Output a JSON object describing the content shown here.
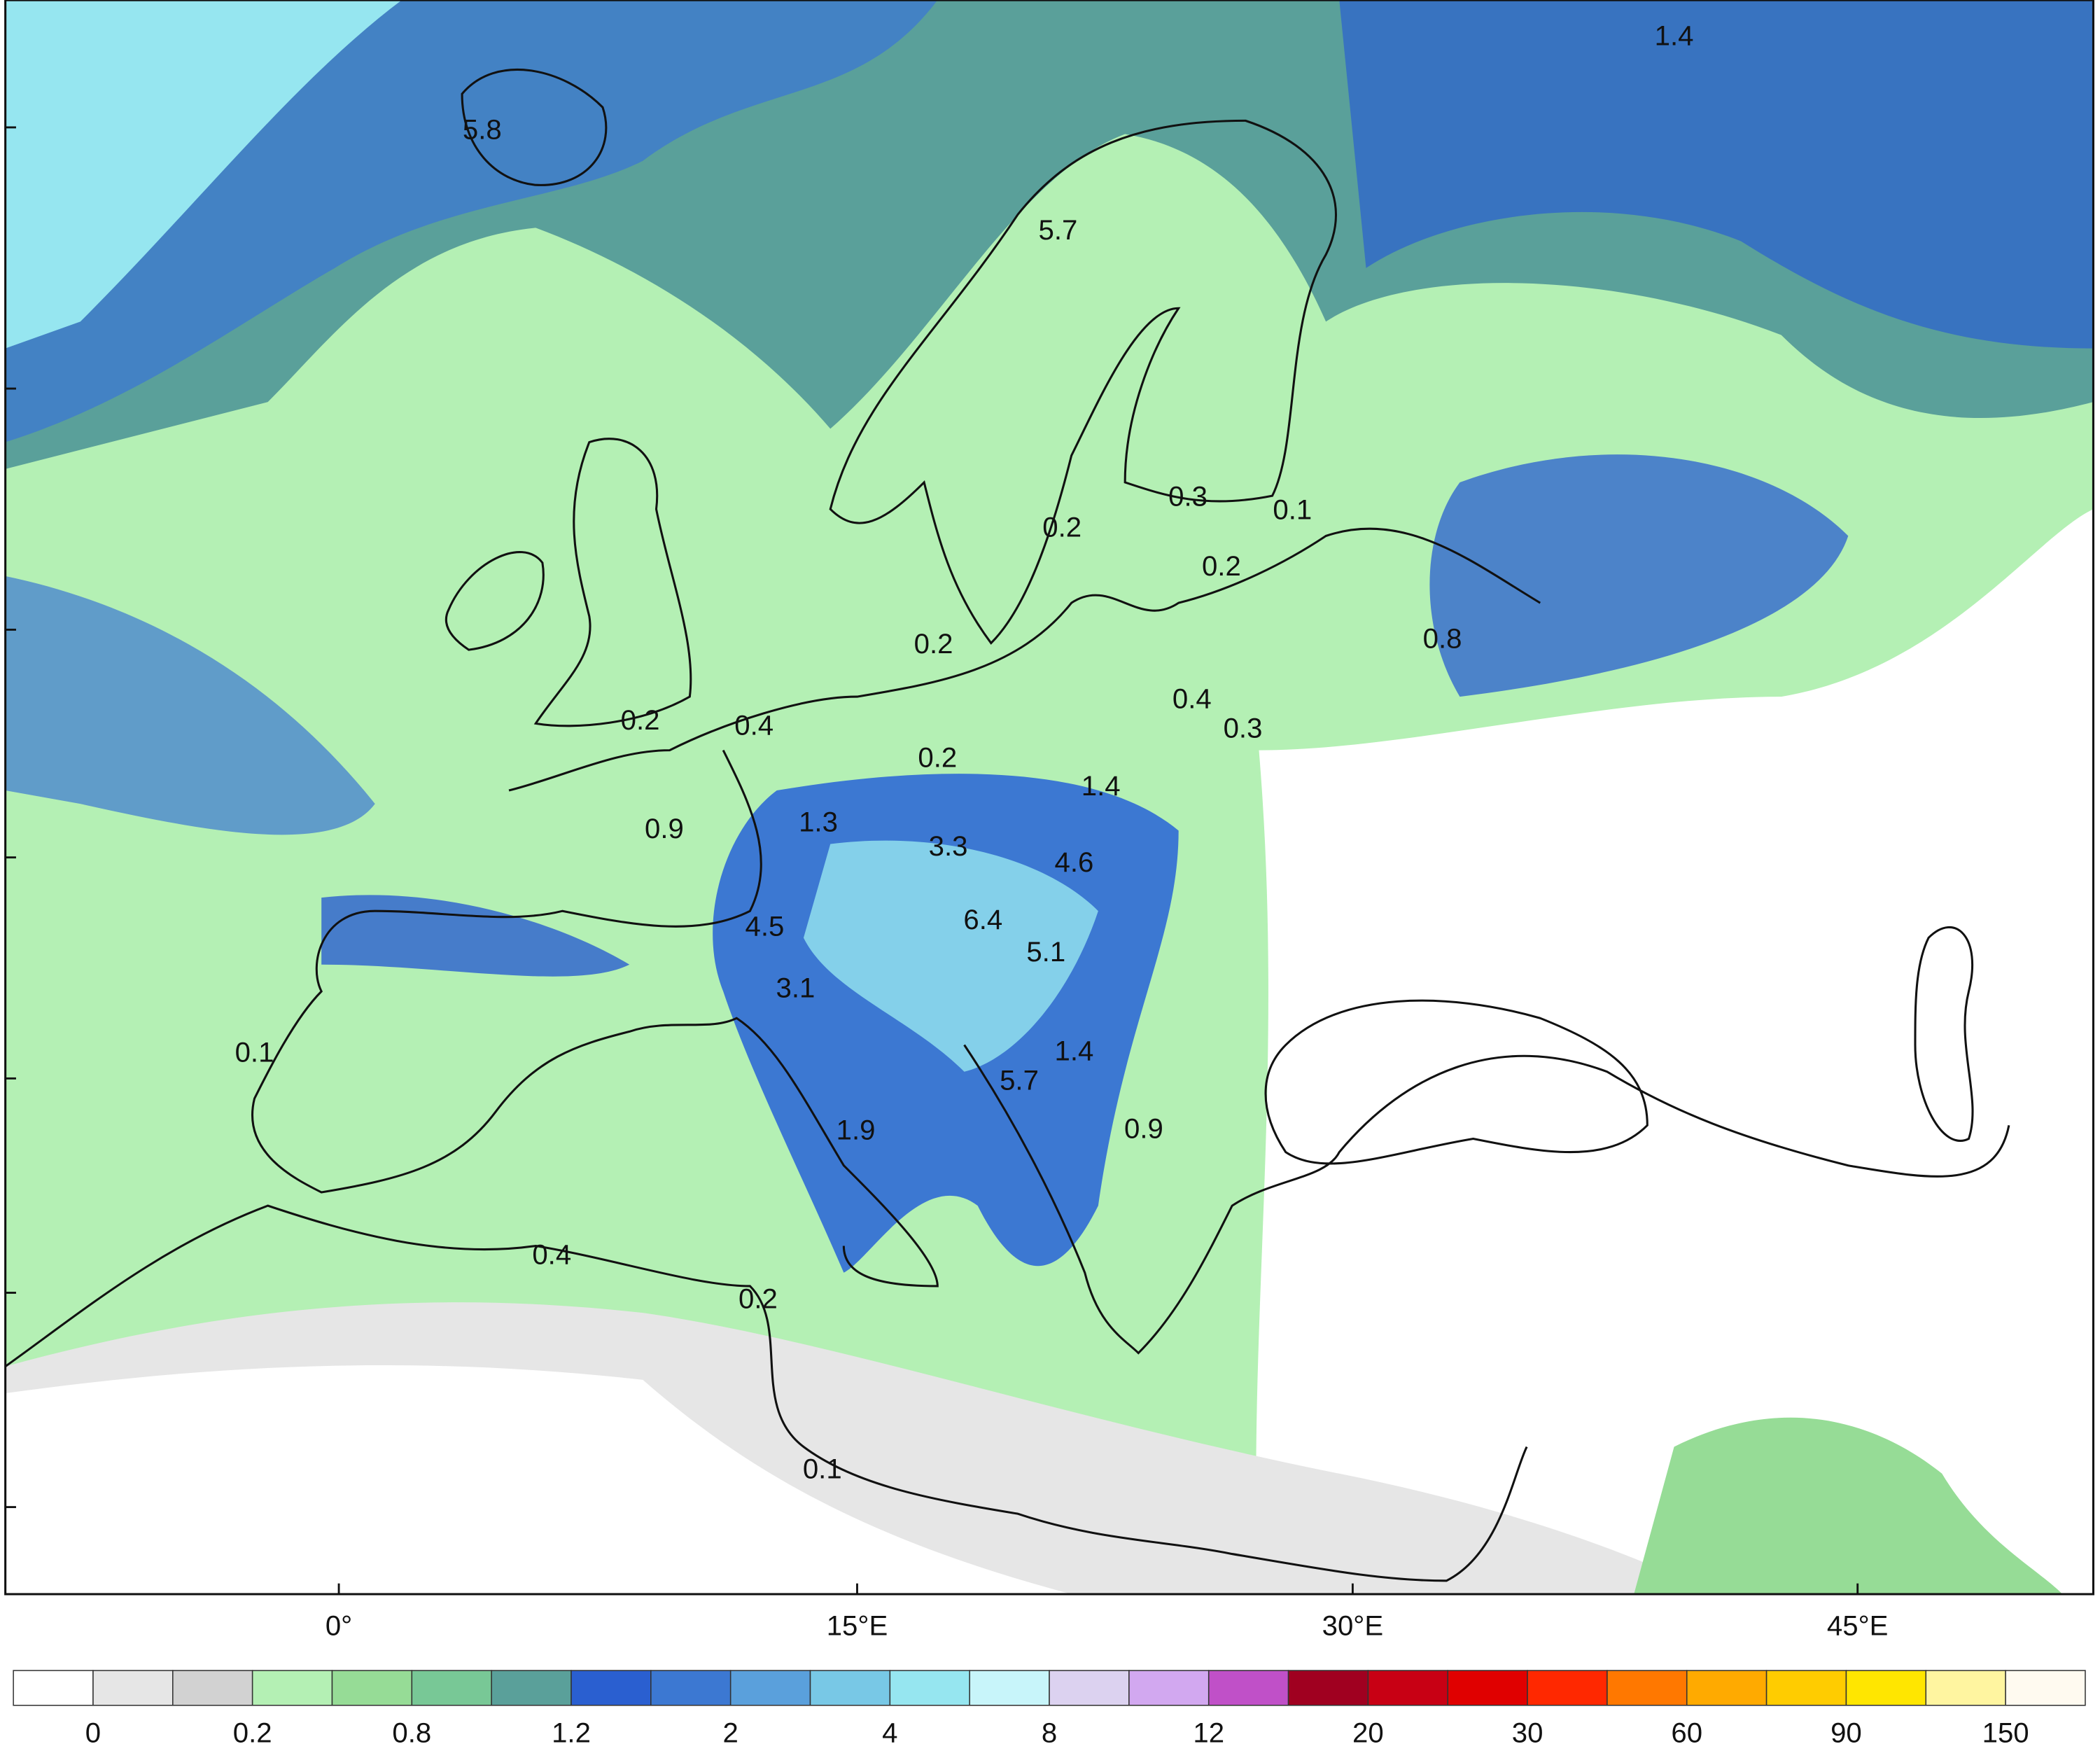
{
  "map": {
    "x_axis_labels": [
      "0°",
      "15°E",
      "30°E",
      "45°E"
    ],
    "value_labels": [
      "1.4",
      "5.8",
      "5.7",
      "0.2",
      "0.3",
      "0.1",
      "0.2",
      "0.8",
      "0.2",
      "0.4",
      "0.3",
      "0.2",
      "0.4",
      "0.2",
      "1.4",
      "0.9",
      "1.3",
      "3.3",
      "4.6",
      "6.4",
      "4.5",
      "5.1",
      "3.1",
      "0.1",
      "1.4",
      "5.7",
      "1.9",
      "0.9",
      "0.4",
      "0.2",
      "0.1"
    ],
    "colorbar": {
      "colors": [
        "#ffffff",
        "#e6e6e6",
        "#d2d2d2",
        "#b4f0b4",
        "#96dc96",
        "#78c896",
        "#5aa09a",
        "#2a5fd0",
        "#3c78d2",
        "#5aa0dc",
        "#78c8e6",
        "#96e6f0",
        "#c8f5fa",
        "#dcd2f0",
        "#d2a8f0",
        "#c050c8",
        "#a00020",
        "#c80014",
        "#e00000",
        "#ff2800",
        "#ff7800",
        "#ffaa00",
        "#ffcc00",
        "#ffe600",
        "#fff5a0",
        "#fffaf0"
      ],
      "labels": [
        "0",
        "0.2",
        "0.8",
        "1.2",
        "2",
        "4",
        "8",
        "12",
        "20",
        "30",
        "60",
        "90",
        "150"
      ]
    }
  }
}
